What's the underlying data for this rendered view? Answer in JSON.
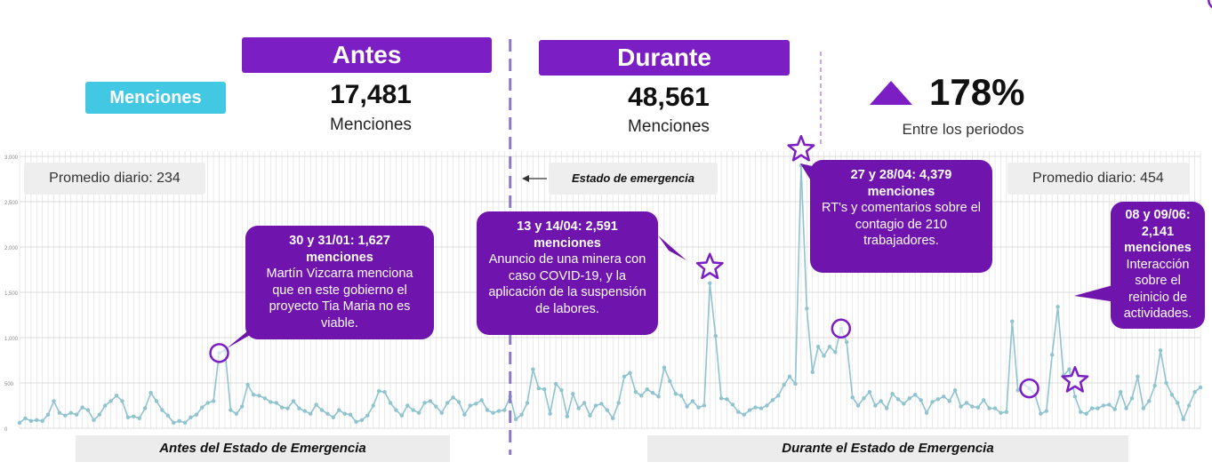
{
  "colors": {
    "purple": "#7b1fc4",
    "callout_purple": "#6f14ad",
    "cyan": "#43c8e3",
    "line": "#8ec3cf",
    "grid": "#e4e4e4"
  },
  "headers": {
    "before_label": "Antes",
    "during_label": "Durante",
    "metric_label": "Menciones"
  },
  "stats": {
    "before_value": "17,481",
    "before_unit": "Menciones",
    "during_value": "48,561",
    "during_unit": "Menciones",
    "change_value": "178%",
    "change_label": "Entre los periodos",
    "change_icon": "triangle-up-icon"
  },
  "averages": {
    "before": "Promedio diario: 234",
    "during": "Promedio diario: 454"
  },
  "event_label": "Estado de emergencia",
  "periods": {
    "before": "Antes del Estado de Emergencia",
    "during": "Durante el Estado de Emergencia"
  },
  "callouts": [
    {
      "title": "30 y 31/01: 1,627 menciones",
      "body": "Martín Vizcarra menciona que en este gobierno el proyecto Tia Maria no es viable."
    },
    {
      "title": "13 y 14/04: 2,591 menciones",
      "body": "Anuncio de una minera con caso COVID-19, y la aplicación de la suspensión de labores."
    },
    {
      "title": "27 y 28/04: 4,379 menciones",
      "body": "RT's y comentarios sobre el contagio de 210 trabajadores."
    },
    {
      "title": "08 y 09/06: 2,141 menciones",
      "body": "Interacción sobre el reinicio de actividades."
    }
  ],
  "chart_data": {
    "type": "line",
    "title": "",
    "xlabel": "",
    "ylabel": "",
    "ylim": [
      0,
      3000
    ],
    "yticks": [
      "0",
      "500",
      "1,000",
      "1,500",
      "2,000",
      "2,500",
      "3,000"
    ],
    "grid": true,
    "x": "daily index (1 point per day)",
    "series": [
      {
        "values": [
          60,
          110,
          80,
          90,
          80,
          150,
          300,
          170,
          140,
          170,
          150,
          230,
          200,
          90,
          150,
          250,
          300,
          360,
          300,
          120,
          130,
          110,
          220,
          390,
          300,
          200,
          140,
          60,
          80,
          60,
          120,
          150,
          230,
          280,
          300,
          830,
          860,
          200,
          160,
          240,
          480,
          370,
          360,
          330,
          290,
          280,
          230,
          220,
          300,
          220,
          190,
          160,
          260,
          200,
          160,
          120,
          200,
          160,
          150,
          70,
          90,
          140,
          250,
          410,
          400,
          280,
          200,
          140,
          250,
          200,
          170,
          280,
          300,
          240,
          170,
          280,
          340,
          290,
          150,
          250,
          270,
          310,
          200,
          170,
          190,
          200,
          350,
          100,
          150,
          280,
          650,
          440,
          430,
          160,
          490,
          420,
          130,
          380,
          220,
          280,
          140,
          250,
          270,
          200,
          110,
          280,
          570,
          610,
          400,
          360,
          430,
          390,
          350,
          670,
          520,
          380,
          360,
          240,
          300,
          230,
          250,
          1600,
          1020,
          330,
          320,
          260,
          180,
          150,
          200,
          230,
          220,
          250,
          310,
          360,
          480,
          570,
          490,
          2900,
          1320,
          620,
          900,
          800,
          900,
          840,
          1100,
          950,
          340,
          250,
          330,
          400,
          250,
          300,
          220,
          380,
          320,
          270,
          330,
          370,
          310,
          170,
          290,
          320,
          350,
          300,
          420,
          240,
          280,
          240,
          230,
          310,
          220,
          220,
          170,
          180,
          1180,
          420,
          490,
          440,
          370,
          160,
          190,
          810,
          1340,
          580,
          650,
          350,
          180,
          160,
          220,
          220,
          250,
          260,
          210,
          400,
          220,
          330,
          570,
          220,
          300,
          470,
          860,
          500,
          370,
          280,
          100,
          250,
          400,
          450
        ]
      }
    ],
    "annotations": [
      {
        "type": "circle",
        "index": 35
      },
      {
        "type": "star",
        "index": 121
      },
      {
        "type": "star",
        "index": 137
      },
      {
        "type": "circle",
        "index": 144
      },
      {
        "type": "circle",
        "index": 177
      },
      {
        "type": "star",
        "index": 185
      },
      {
        "type": "circle",
        "index": 210
      }
    ],
    "event_index": 86
  }
}
